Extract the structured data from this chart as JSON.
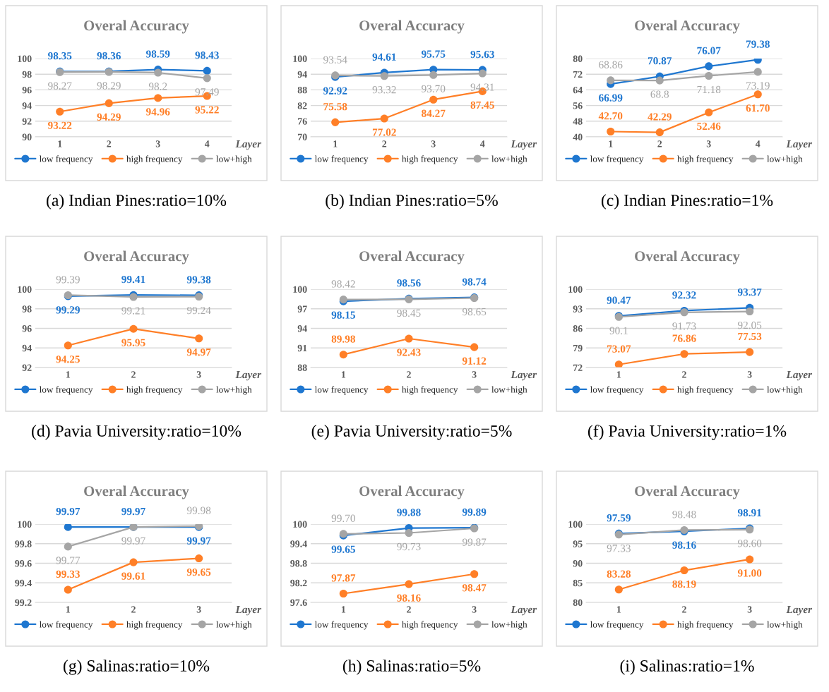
{
  "chart_data": [
    {
      "type": "line",
      "title": "Overal Accuracy",
      "xlabel": "Layer",
      "categories": [
        "1",
        "2",
        "3",
        "4"
      ],
      "ylim": [
        90,
        100
      ],
      "yticks": [
        90,
        92,
        94,
        96,
        98,
        100
      ],
      "grid": "y",
      "legend": "bottom",
      "marker": "circle",
      "annotations": [
        "(a) Indian Pines:ratio=10%"
      ],
      "series": [
        {
          "name": "low frequency",
          "color": "#1f77d0",
          "values": [
            98.35,
            98.36,
            98.59,
            98.43
          ],
          "value_labels": [
            "98.35",
            "98.36",
            "98.59",
            "98.43"
          ]
        },
        {
          "name": "high frequency",
          "color": "#ff7f27",
          "values": [
            93.22,
            94.29,
            94.96,
            95.22
          ],
          "value_labels": [
            "93.22",
            "94.29",
            "94.96",
            "95.22"
          ]
        },
        {
          "name": "low+high",
          "color": "#a5a5a5",
          "values": [
            98.27,
            98.29,
            98.2,
            97.49
          ],
          "value_labels": [
            "98.27",
            "98.29",
            "98.2",
            "97.49"
          ]
        }
      ]
    },
    {
      "type": "line",
      "title": "Overal Accuracy",
      "xlabel": "Layer",
      "categories": [
        "1",
        "2",
        "3",
        "4"
      ],
      "ylim": [
        70,
        100
      ],
      "yticks": [
        70,
        76,
        82,
        88,
        94,
        100
      ],
      "grid": "y",
      "legend": "bottom",
      "marker": "circle",
      "annotations": [
        "(b) Indian Pines:ratio=5%"
      ],
      "series": [
        {
          "name": "low frequency",
          "color": "#1f77d0",
          "values": [
            92.92,
            94.61,
            95.75,
            95.63
          ],
          "value_labels": [
            "92.92",
            "94.61",
            "95.75",
            "95.63"
          ]
        },
        {
          "name": "high frequency",
          "color": "#ff7f27",
          "values": [
            75.58,
            77.02,
            84.27,
            87.45
          ],
          "value_labels": [
            "75.58",
            "77.02",
            "84.27",
            "87.45"
          ]
        },
        {
          "name": "low+high",
          "color": "#a5a5a5",
          "values": [
            93.54,
            93.32,
            93.7,
            94.31
          ],
          "value_labels": [
            "93.54",
            "93.32",
            "93.70",
            "94.31"
          ]
        }
      ]
    },
    {
      "type": "line",
      "title": "Overal Accuracy",
      "xlabel": "Layer",
      "categories": [
        "1",
        "2",
        "3",
        "4"
      ],
      "ylim": [
        40,
        80
      ],
      "yticks": [
        40,
        48,
        56,
        64,
        72,
        80
      ],
      "grid": "y",
      "legend": "bottom",
      "marker": "circle",
      "annotations": [
        "(c) Indian Pines:ratio=1%"
      ],
      "series": [
        {
          "name": "low frequency",
          "color": "#1f77d0",
          "values": [
            66.99,
            70.87,
            76.07,
            79.38
          ],
          "value_labels": [
            "66.99",
            "70.87",
            "76.07",
            "79.38"
          ]
        },
        {
          "name": "high frequency",
          "color": "#ff7f27",
          "values": [
            42.7,
            42.29,
            52.46,
            61.7
          ],
          "value_labels": [
            "42.70",
            "42.29",
            "52.46",
            "61.70"
          ]
        },
        {
          "name": "low+high",
          "color": "#a5a5a5",
          "values": [
            68.86,
            68.8,
            71.18,
            73.19
          ],
          "value_labels": [
            "68.86",
            "68.8",
            "71.18",
            "73.19"
          ]
        }
      ]
    },
    {
      "type": "line",
      "title": "Overal Accuracy",
      "xlabel": "Layer",
      "categories": [
        "1",
        "2",
        "3"
      ],
      "ylim": [
        92,
        100
      ],
      "yticks": [
        92,
        94,
        96,
        98,
        100
      ],
      "grid": "y",
      "legend": "bottom",
      "marker": "circle",
      "annotations": [
        "(d) Pavia University:ratio=10%"
      ],
      "series": [
        {
          "name": "low frequency",
          "color": "#1f77d0",
          "values": [
            99.29,
            99.41,
            99.38
          ],
          "value_labels": [
            "99.29",
            "99.41",
            "99.38"
          ]
        },
        {
          "name": "high frequency",
          "color": "#ff7f27",
          "values": [
            94.25,
            95.95,
            94.97
          ],
          "value_labels": [
            "94.25",
            "95.95",
            "94.97"
          ]
        },
        {
          "name": "low+high",
          "color": "#a5a5a5",
          "values": [
            99.39,
            99.21,
            99.24
          ],
          "value_labels": [
            "99.39",
            "99.21",
            "99.24"
          ]
        }
      ]
    },
    {
      "type": "line",
      "title": "Overal Accuracy",
      "xlabel": "Layer",
      "categories": [
        "1",
        "2",
        "3"
      ],
      "ylim": [
        88,
        100
      ],
      "yticks": [
        88,
        91,
        94,
        97,
        100
      ],
      "grid": "y",
      "legend": "bottom",
      "marker": "circle",
      "annotations": [
        "(e) Pavia University:ratio=5%"
      ],
      "series": [
        {
          "name": "low frequency",
          "color": "#1f77d0",
          "values": [
            98.15,
            98.56,
            98.74
          ],
          "value_labels": [
            "98.15",
            "98.56",
            "98.74"
          ]
        },
        {
          "name": "high frequency",
          "color": "#ff7f27",
          "values": [
            89.98,
            92.43,
            91.12
          ],
          "value_labels": [
            "89.98",
            "92.43",
            "91.12"
          ]
        },
        {
          "name": "low+high",
          "color": "#a5a5a5",
          "values": [
            98.42,
            98.45,
            98.65
          ],
          "value_labels": [
            "98.42",
            "98.45",
            "98.65"
          ]
        }
      ]
    },
    {
      "type": "line",
      "title": "Overal Accuracy",
      "xlabel": "Layer",
      "categories": [
        "1",
        "2",
        "3"
      ],
      "ylim": [
        72,
        100
      ],
      "yticks": [
        72,
        79,
        86,
        93,
        100
      ],
      "grid": "y",
      "legend": "bottom",
      "marker": "circle",
      "annotations": [
        "(f) Pavia University:ratio=1%"
      ],
      "series": [
        {
          "name": "low frequency",
          "color": "#1f77d0",
          "values": [
            90.47,
            92.32,
            93.37
          ],
          "value_labels": [
            "90.47",
            "92.32",
            "93.37"
          ]
        },
        {
          "name": "high frequency",
          "color": "#ff7f27",
          "values": [
            73.07,
            76.86,
            77.53
          ],
          "value_labels": [
            "73.07",
            "76.86",
            "77.53"
          ]
        },
        {
          "name": "low+high",
          "color": "#a5a5a5",
          "values": [
            90.1,
            91.73,
            92.05
          ],
          "value_labels": [
            "90.1",
            "91.73",
            "92.05"
          ]
        }
      ]
    },
    {
      "type": "line",
      "title": "Overal Accuracy",
      "xlabel": "Layer",
      "categories": [
        "1",
        "2",
        "3"
      ],
      "ylim": [
        99.2,
        100
      ],
      "yticks": [
        {
          "value": 99.2,
          "label": "99.2"
        },
        {
          "value": 99.4,
          "label": "99.4"
        },
        {
          "value": 99.6,
          "label": "99.6"
        },
        {
          "value": 99.8,
          "label": "99.8"
        },
        100
      ],
      "grid": "y",
      "legend": "bottom",
      "marker": "circle",
      "annotations": [
        "(g) Salinas:ratio=10%"
      ],
      "series": [
        {
          "name": "low frequency",
          "color": "#1f77d0",
          "values": [
            99.97,
            99.97,
            99.97
          ],
          "value_labels": [
            "99.97",
            "99.97",
            "99.97"
          ]
        },
        {
          "name": "high frequency",
          "color": "#ff7f27",
          "values": [
            99.33,
            99.61,
            99.65
          ],
          "value_labels": [
            "99.33",
            "99.61",
            "99.65"
          ]
        },
        {
          "name": "low+high",
          "color": "#a5a5a5",
          "values": [
            99.77,
            99.97,
            99.98
          ],
          "value_labels": [
            "99.77",
            "99.97",
            "99.98"
          ]
        }
      ]
    },
    {
      "type": "line",
      "title": "Overal Accuracy",
      "xlabel": "Layer",
      "categories": [
        "1",
        "2",
        "3"
      ],
      "ylim": [
        97.6,
        100
      ],
      "yticks": [
        {
          "value": 97.6,
          "label": "97.6"
        },
        {
          "value": 98.2,
          "label": "98.2"
        },
        {
          "value": 98.8,
          "label": "98.8"
        },
        {
          "value": 99.4,
          "label": "99.4"
        },
        100
      ],
      "grid": "y",
      "legend": "bottom",
      "marker": "circle",
      "annotations": [
        "(h) Salinas:ratio=5%"
      ],
      "series": [
        {
          "name": "low frequency",
          "color": "#1f77d0",
          "values": [
            99.65,
            99.88,
            99.89
          ],
          "value_labels": [
            "99.65",
            "99.88",
            "99.89"
          ]
        },
        {
          "name": "high frequency",
          "color": "#ff7f27",
          "values": [
            97.87,
            98.16,
            98.47
          ],
          "value_labels": [
            "97.87",
            "98.16",
            "98.47"
          ]
        },
        {
          "name": "low+high",
          "color": "#a5a5a5",
          "values": [
            99.7,
            99.73,
            99.87
          ],
          "value_labels": [
            "99.70",
            "99.73",
            "99.87"
          ]
        }
      ]
    },
    {
      "type": "line",
      "title": "Overal Accuracy",
      "xlabel": "Layer",
      "categories": [
        "1",
        "2",
        "3"
      ],
      "ylim": [
        80,
        100
      ],
      "yticks": [
        80,
        85,
        90,
        95,
        100
      ],
      "grid": "y",
      "legend": "bottom",
      "marker": "circle",
      "annotations": [
        "(i) Salinas:ratio=1%"
      ],
      "series": [
        {
          "name": "low frequency",
          "color": "#1f77d0",
          "values": [
            97.59,
            98.16,
            98.91
          ],
          "value_labels": [
            "97.59",
            "98.16",
            "98.91"
          ]
        },
        {
          "name": "high frequency",
          "color": "#ff7f27",
          "values": [
            83.28,
            88.19,
            91.0
          ],
          "value_labels": [
            "83.28",
            "88.19",
            "91.00"
          ]
        },
        {
          "name": "low+high",
          "color": "#a5a5a5",
          "values": [
            97.33,
            98.48,
            98.6
          ],
          "value_labels": [
            "97.33",
            "98.48",
            "98.60"
          ]
        }
      ]
    }
  ]
}
